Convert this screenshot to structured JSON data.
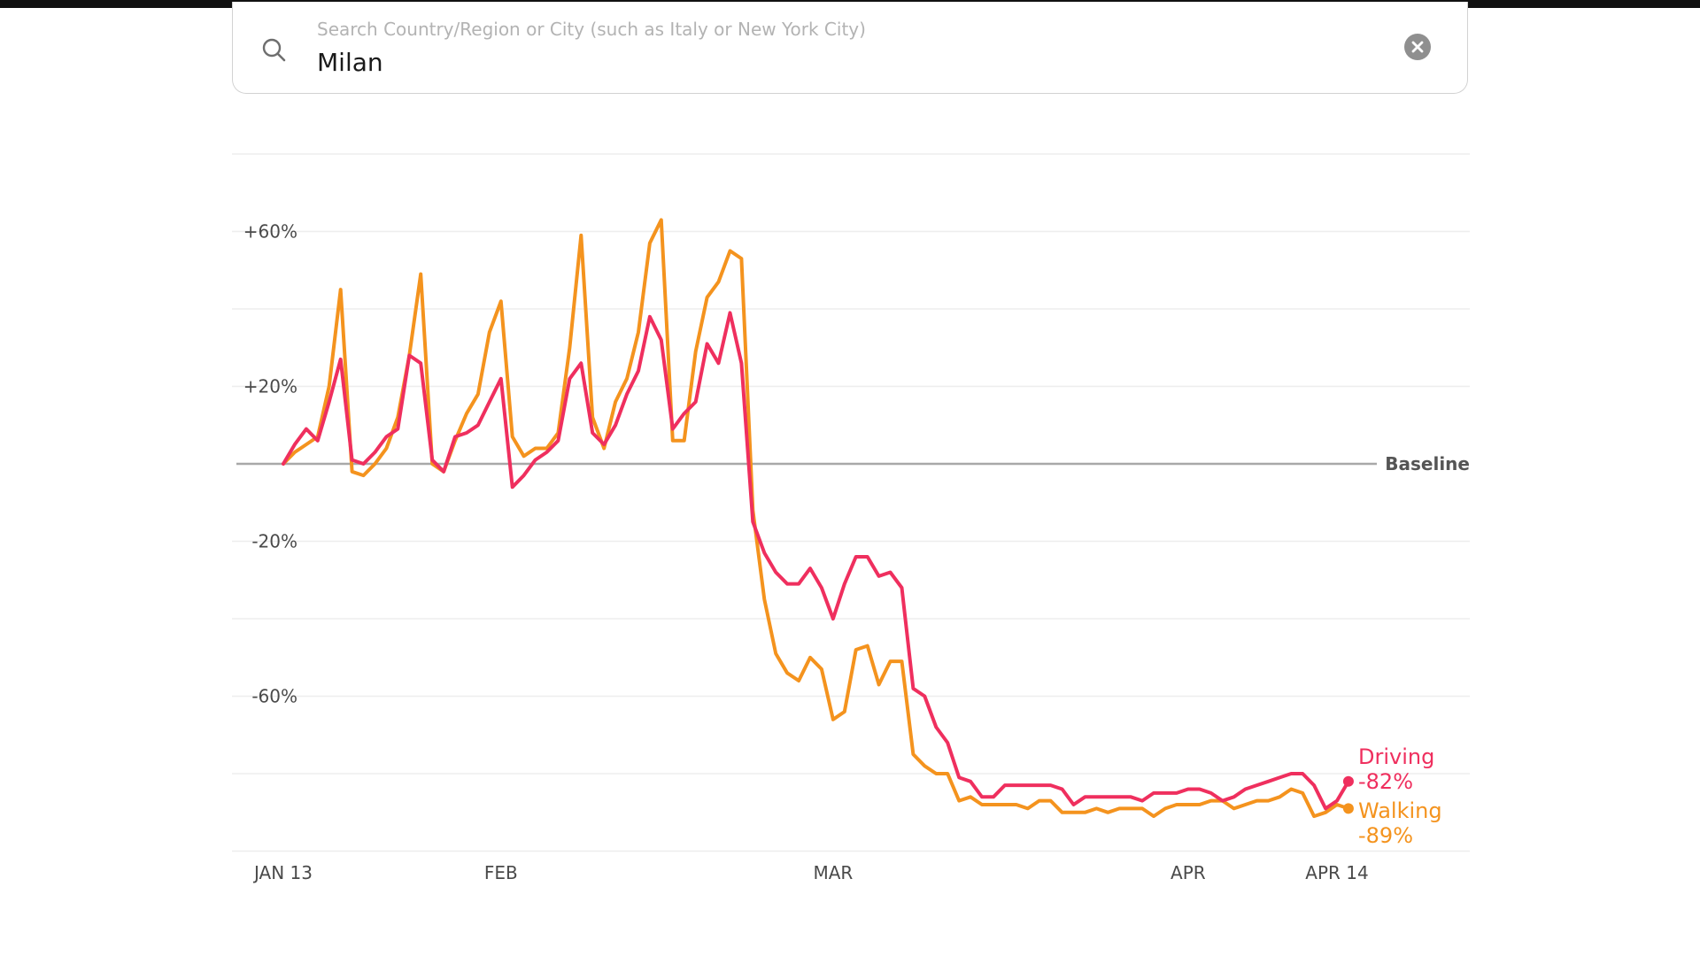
{
  "search": {
    "placeholder": "Search Country/Region or City (such as Italy or New York City)",
    "value": "Milan"
  },
  "chart_data": {
    "type": "line",
    "x_tick_labels": [
      {
        "label": "JAN 13",
        "date": "2020-01-13"
      },
      {
        "label": "FEB",
        "date": "2020-02-01"
      },
      {
        "label": "MAR",
        "date": "2020-03-01"
      },
      {
        "label": "APR",
        "date": "2020-04-01"
      },
      {
        "label": "APR 14",
        "date": "2020-04-14"
      }
    ],
    "y_ticks": [
      {
        "value": 60,
        "label": "+60%"
      },
      {
        "value": 20,
        "label": "+20%"
      },
      {
        "value": -20,
        "label": "-20%"
      },
      {
        "value": -60,
        "label": "-60%"
      }
    ],
    "y_gridlines": [
      80,
      60,
      40,
      20,
      -20,
      -40,
      -60,
      -80,
      -100
    ],
    "ylim": [
      -100,
      80
    ],
    "xlim": [
      "2020-01-13",
      "2020-04-14"
    ],
    "baseline": {
      "value": 0,
      "label": "Baseline"
    },
    "grid": true,
    "series": [
      {
        "name": "Driving",
        "color": "#ef2f5e",
        "end_label": "-82%",
        "x_start": "2020-01-13",
        "values": [
          0,
          5,
          9,
          6,
          16,
          27,
          1,
          0,
          3,
          7,
          9,
          28,
          26,
          1,
          -2,
          7,
          8,
          10,
          16,
          22,
          -6,
          -3,
          1,
          3,
          6,
          22,
          26,
          8,
          5,
          10,
          18,
          24,
          38,
          32,
          9,
          13,
          16,
          31,
          26,
          39,
          26,
          -15,
          -23,
          -28,
          -31,
          -31,
          -27,
          -32,
          -40,
          -31,
          -24,
          -24,
          -29,
          -28,
          -32,
          -58,
          -60,
          -68,
          -72,
          -81,
          -82,
          -86,
          -86,
          -83,
          -83,
          -83,
          -83,
          -83,
          -84,
          -88,
          -86,
          -86,
          -86,
          -86,
          -86,
          -87,
          -85,
          -85,
          -85,
          -84,
          -84,
          -85,
          -87,
          -86,
          -84,
          -83,
          -82,
          -81,
          -80,
          -80,
          -83,
          -89,
          -87,
          -82
        ]
      },
      {
        "name": "Walking",
        "color": "#f4931e",
        "end_label": "-89%",
        "x_start": "2020-01-13",
        "values": [
          0,
          3,
          5,
          7,
          20,
          45,
          -2,
          -3,
          0,
          4,
          12,
          28,
          49,
          0,
          -2,
          6,
          13,
          18,
          34,
          42,
          7,
          2,
          4,
          4,
          8,
          30,
          59,
          12,
          4,
          16,
          22,
          34,
          57,
          63,
          6,
          6,
          29,
          43,
          47,
          55,
          53,
          -12,
          -35,
          -49,
          -54,
          -56,
          -50,
          -53,
          -66,
          -64,
          -48,
          -47,
          -57,
          -51,
          -51,
          -75,
          -78,
          -80,
          -80,
          -87,
          -86,
          -88,
          -88,
          -88,
          -88,
          -89,
          -87,
          -87,
          -90,
          -90,
          -90,
          -89,
          -90,
          -89,
          -89,
          -89,
          -91,
          -89,
          -88,
          -88,
          -88,
          -87,
          -87,
          -89,
          -88,
          -87,
          -87,
          -86,
          -84,
          -85,
          -91,
          -90,
          -88,
          -89
        ]
      }
    ]
  }
}
